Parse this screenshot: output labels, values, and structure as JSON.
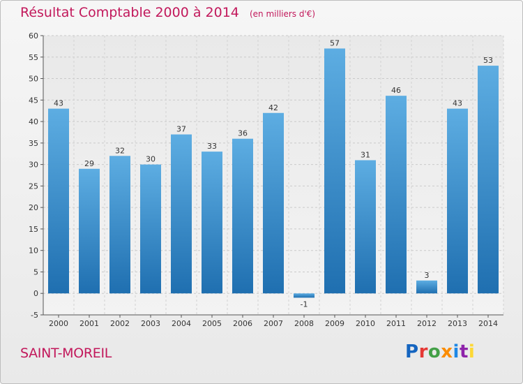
{
  "header": {
    "title": "Résultat Comptable 2000 à 2014",
    "unit": "(en milliers d'€)"
  },
  "footer": {
    "commune": "SAINT-MOREIL",
    "logo_text": "Proxiti"
  },
  "colors": {
    "title": "#c2185b",
    "bar_light": "#5dade2",
    "bar_dark": "#1f6fb0",
    "background": "#f0f0f0"
  },
  "chart_data": {
    "type": "bar",
    "categories": [
      "2000",
      "2001",
      "2002",
      "2003",
      "2004",
      "2005",
      "2006",
      "2007",
      "2008",
      "2009",
      "2010",
      "2011",
      "2012",
      "2013",
      "2014"
    ],
    "values": [
      43,
      29,
      32,
      30,
      37,
      33,
      36,
      42,
      -1,
      57,
      31,
      46,
      3,
      43,
      53
    ],
    "title": "Résultat Comptable 2000 à 2014",
    "ylim": [
      -5,
      60
    ],
    "yticks": [
      -5,
      0,
      5,
      10,
      15,
      20,
      25,
      30,
      35,
      40,
      45,
      50,
      55,
      60
    ],
    "grid": true
  }
}
